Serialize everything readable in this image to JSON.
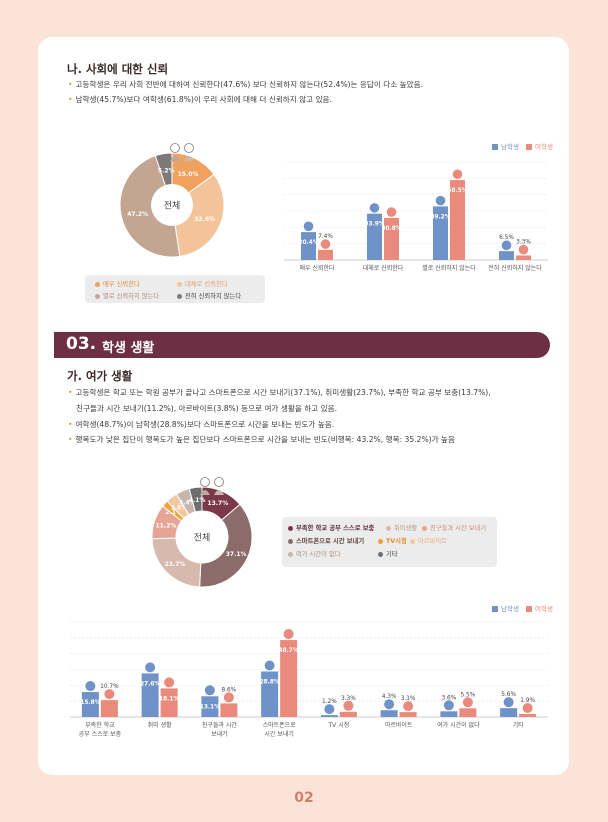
{
  "section_trust": {
    "heading": "나. 사회에 대한 신뢰",
    "bullets": [
      "고등학생은 우리 사회 전반에 대하여 신뢰한다(47.6%) 보다 신뢰하지 않는다(52.4%)는 응답이 다소 높았음.",
      "남학생(45.7%)보다 여학생(61.8%)이 우리 사회에 대해 더 신뢰하지 않고 있음."
    ],
    "pie": {
      "center_label": "전체",
      "slices": [
        {
          "label": "매우 신뢰한다",
          "value": 15.0,
          "text": "15.0%",
          "color": "#f0a15e"
        },
        {
          "label": "대체로 신뢰한다",
          "value": 32.6,
          "text": "32.6%",
          "color": "#f3c49a"
        },
        {
          "label": "별로 신뢰하지 않는다",
          "value": 47.2,
          "text": "47.2%",
          "color": "#c4a592"
        },
        {
          "label": "전혀 신뢰하지 않는다",
          "value": 5.2,
          "text": "5.2%",
          "color": "#7f7878"
        }
      ]
    },
    "legend": {
      "male": "남학생",
      "female": "여학생"
    },
    "bar_chart": {
      "categories": [
        "매우 신뢰한다",
        "대체로 신뢰한다",
        "별로 신뢰하지 않는다",
        "전혀 신뢰하지 않는다"
      ],
      "male": [
        20.4,
        33.9,
        39.2,
        6.5
      ],
      "female": [
        7.4,
        30.8,
        58.5,
        3.3
      ],
      "male_text": [
        "20.4%",
        "33.9%",
        "39.2%",
        "6.5%"
      ],
      "female_text": [
        "7.4%",
        "30.8%",
        "58.5%",
        "3.3%"
      ]
    }
  },
  "banner": {
    "number": "03.",
    "title": "학생 생활"
  },
  "section_leisure": {
    "heading": "가. 여가 생활",
    "bullets": [
      "고등학생은 학교 또는 학원 공부가 끝나고 스마트폰으로 시간 보내기(37.1%), 취미생활(23.7%), 부족한 학교 공부 보충(13.7%),",
      "친구들과 시간 보내기(11.2%), 아르바이트(3.8%) 등으로 여가 생활을 하고 있음.",
      "여학생(48.7%)이 남학생(28.8%)보다 스마트폰으로 시간을 보내는 빈도가 높음.",
      "행복도가 낮은 집단이 행복도가 높은 집단보다 스마트폰으로 시간을 보내는 빈도(비행복: 43.2%, 행복: 35.2%)가 높음"
    ],
    "donut": {
      "center_label": "전체",
      "slices": [
        {
          "label": "부족한 학교 공부 스스로 보충",
          "value": 13.7,
          "text": "13.7%",
          "color": "#7a3848"
        },
        {
          "label": "스마트폰으로 시간 보내기",
          "value": 37.1,
          "text": "37.1%",
          "color": "#8c6b6b"
        },
        {
          "label": "취미생활",
          "value": 23.7,
          "text": "23.7%",
          "color": "#d8b9ad"
        },
        {
          "label": "친구들과 시간 보내기",
          "value": 11.2,
          "text": "11.2%",
          "color": "#e6a494"
        },
        {
          "label": "TV시청",
          "value": 2.1,
          "text": "2.1%",
          "color": "#f0a13c"
        },
        {
          "label": "아르바이트",
          "value": 3.8,
          "text": "3.8%",
          "color": "#f4c7a0"
        },
        {
          "label": "여가 시간이 없다",
          "value": 4.4,
          "text": "4.4%",
          "color": "#c8b5ab"
        },
        {
          "label": "기타",
          "value": 4.1,
          "text": "4.1%",
          "color": "#6e6e6e"
        }
      ]
    },
    "donut_legend": [
      "부족한 학교 공부 스스로 보충",
      "취미생활",
      "친구들과 시간 보내기",
      "스마트폰으로 시간 보내기",
      "TV시청",
      "아르바이트",
      "여가 시간이 없다",
      "기타"
    ],
    "legend": {
      "male": "남학생",
      "female": "여학생"
    },
    "bar_chart": {
      "categories": [
        [
          "부족한 학교",
          "공부 스스로 보충"
        ],
        [
          "취미 생활"
        ],
        [
          "친구들과 시간",
          "보내기"
        ],
        [
          "스마트폰으로",
          "시간 보내기"
        ],
        [
          "TV 시청"
        ],
        [
          "아르바이트"
        ],
        [
          "여가 시간이 없다"
        ],
        [
          "기타"
        ]
      ],
      "male": [
        15.8,
        27.6,
        13.1,
        28.8,
        1.2,
        4.3,
        3.6,
        5.6
      ],
      "female": [
        10.7,
        18.1,
        8.6,
        48.7,
        3.3,
        3.1,
        5.5,
        1.9
      ],
      "male_text": [
        "15.8%",
        "27.6%",
        "13.1%",
        "28.8%",
        "1.2%",
        "4.3%",
        "3.6%",
        "5.6%"
      ],
      "female_text": [
        "10.7%",
        "18.1%",
        "8.6%",
        "48.7%",
        "3.3%",
        "3.1%",
        "5.5%",
        "1.9%"
      ]
    }
  },
  "page_number": "02",
  "colors": {
    "male": "#6f93c8",
    "female": "#ea8a7c",
    "banner": "#6e2e43",
    "accent": "#d07f6a"
  }
}
